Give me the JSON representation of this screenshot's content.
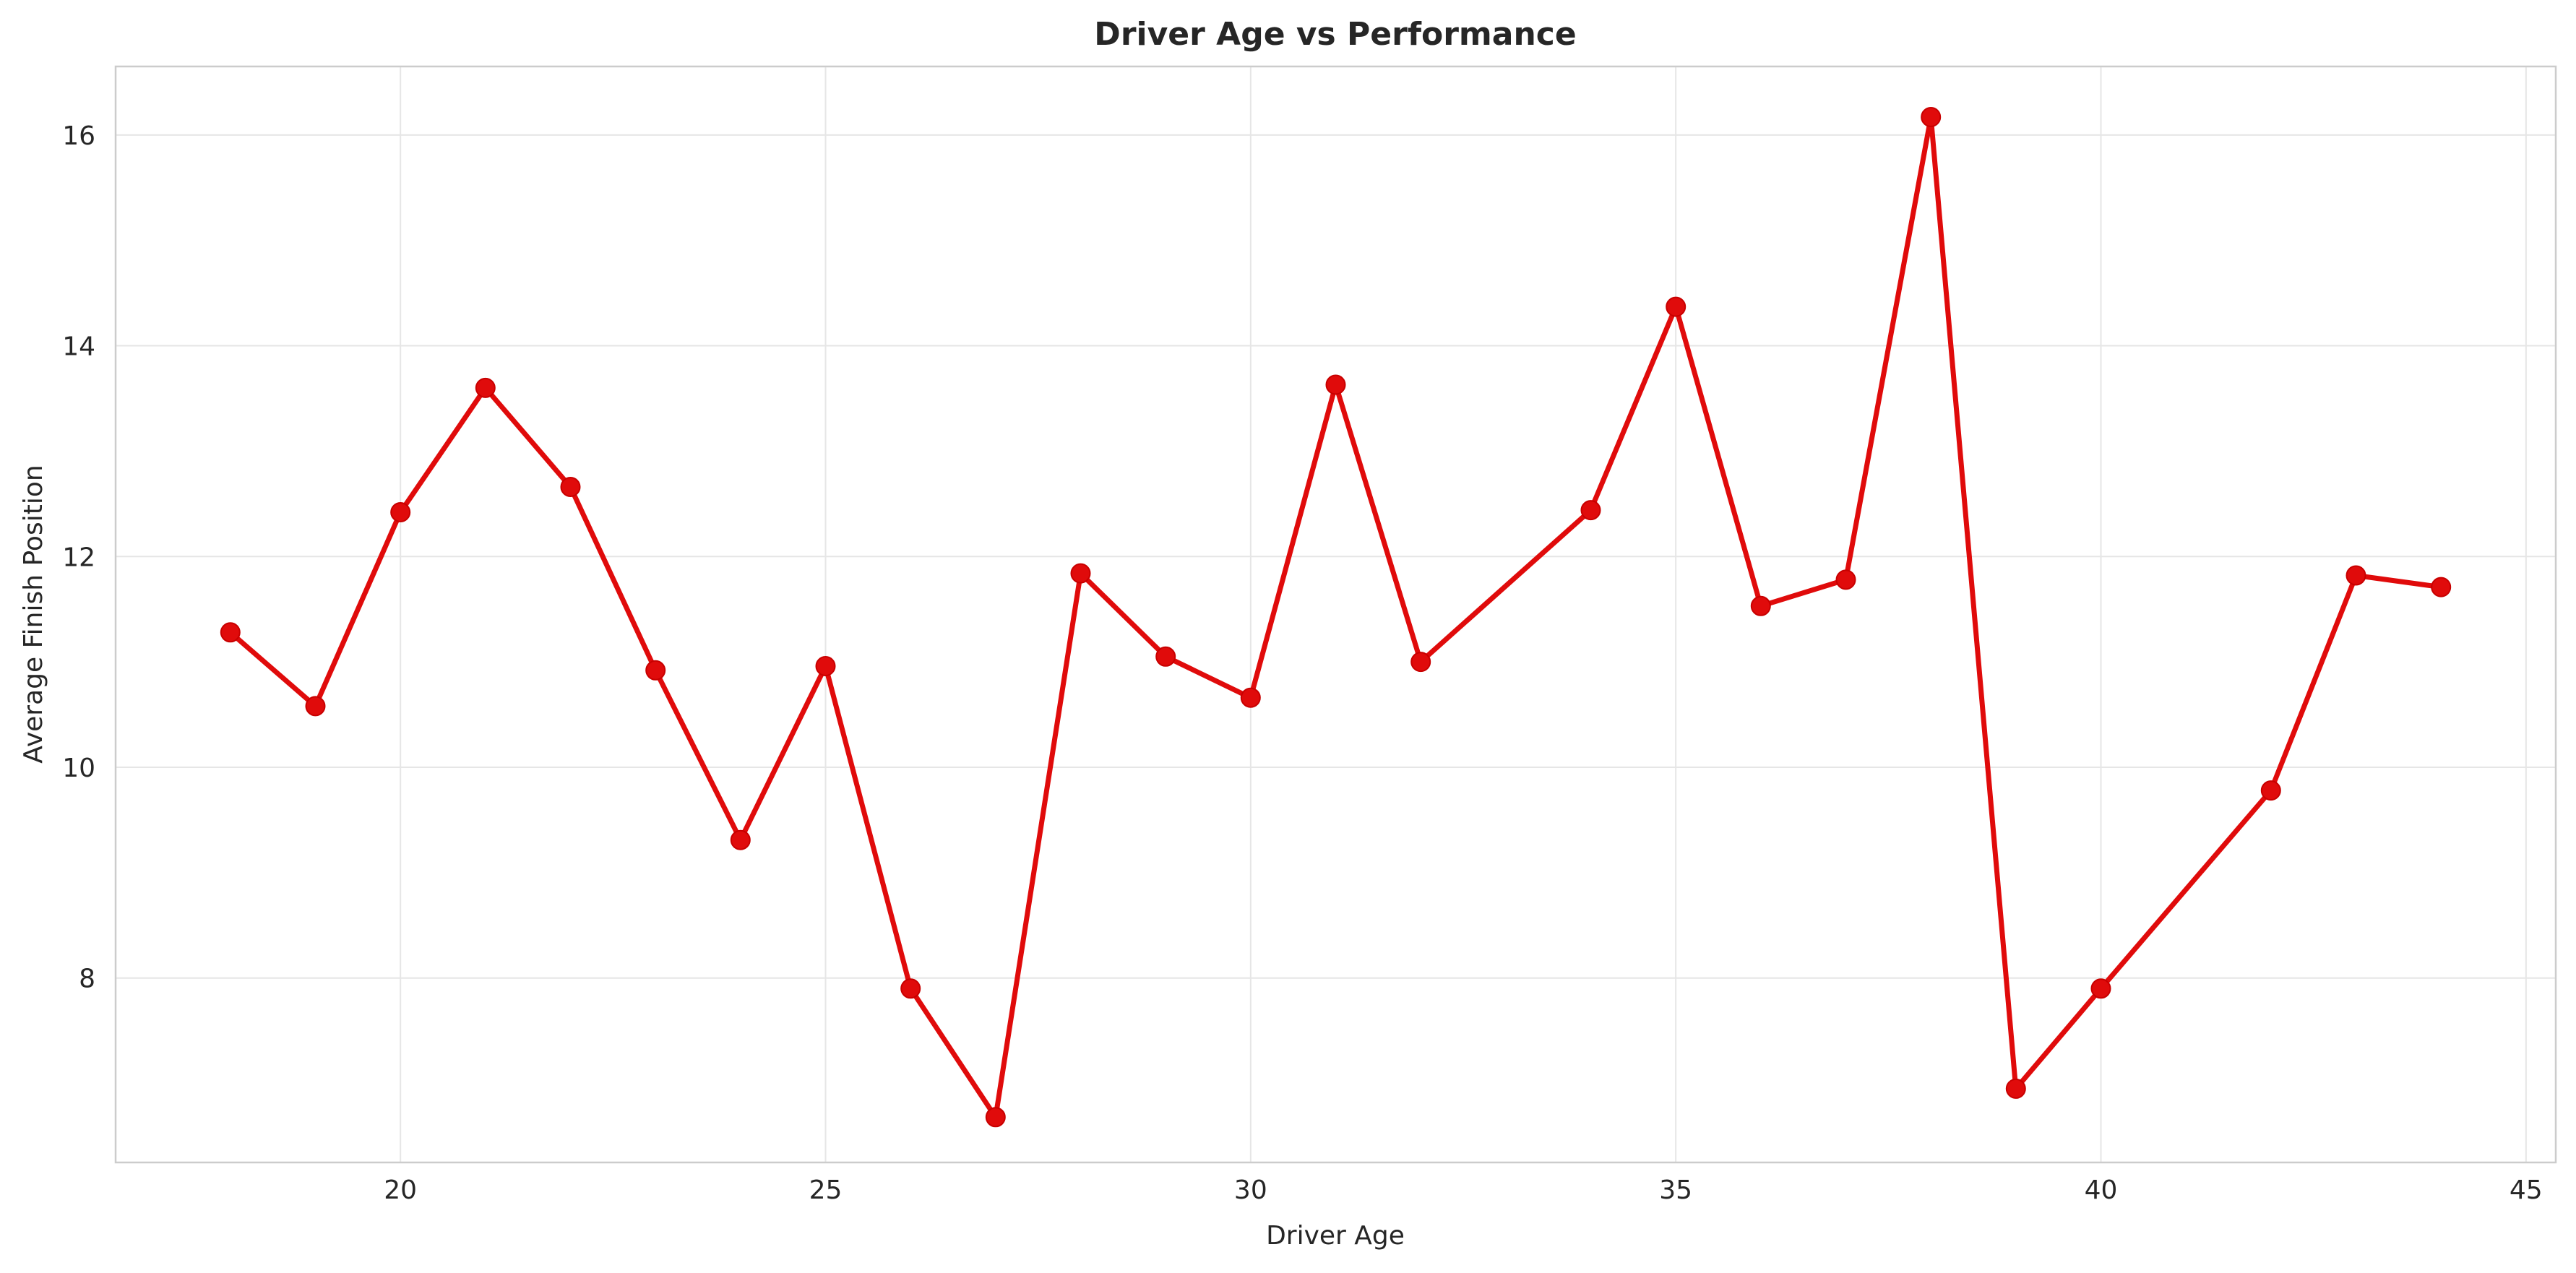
{
  "chart_data": {
    "type": "line",
    "title": "Driver Age vs Performance",
    "xlabel": "Driver Age",
    "ylabel": "Average Finish Position",
    "xlim": [
      16.65,
      45.35
    ],
    "ylim": [
      6.25,
      16.65
    ],
    "xticks": [
      20,
      25,
      30,
      35,
      40,
      45
    ],
    "yticks": [
      8,
      10,
      12,
      14,
      16
    ],
    "grid": true,
    "legend": "none",
    "series": [
      {
        "color": "#e00b0b",
        "marker": "circle",
        "x": [
          18,
          19,
          20,
          21,
          22,
          23,
          24,
          25,
          26,
          27,
          28,
          29,
          30,
          31,
          32,
          34,
          35,
          36,
          37,
          38,
          39,
          40,
          42,
          43,
          44
        ],
        "y": [
          11.28,
          10.58,
          12.42,
          13.6,
          12.66,
          10.92,
          9.31,
          10.96,
          7.9,
          6.68,
          11.84,
          11.05,
          10.66,
          13.63,
          11.0,
          12.44,
          14.37,
          11.53,
          11.78,
          16.17,
          6.95,
          7.9,
          9.78,
          11.82,
          11.71
        ]
      }
    ]
  }
}
